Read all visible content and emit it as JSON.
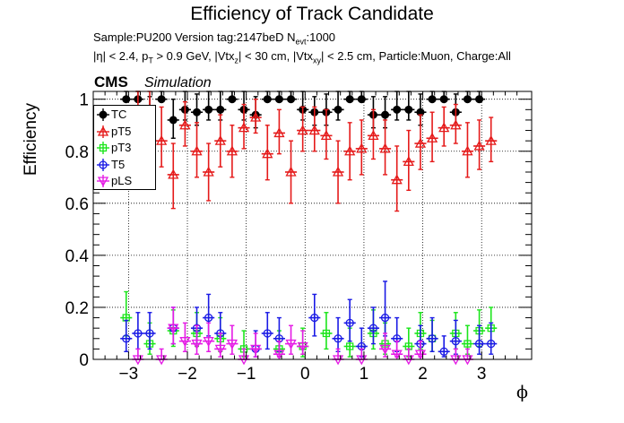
{
  "page": {
    "title": "Efficiency of Track Candidate",
    "sample_line_a": "Sample:PU200   Version tag:2147beD  N",
    "sample_line_sub": "evt",
    "sample_line_b": ":1000",
    "cuts": {
      "p1": "|η| < 2.4, p",
      "s1": "T",
      "p2": " > 0.9 GeV, |Vtx",
      "s2": "z",
      "p3": "| < 30 cm, |Vtx",
      "s3": "xy",
      "p4": "| < 2.5 cm, Particle:Muon, Charge:All"
    },
    "cms_label": "CMS",
    "sim_label": "Simulation"
  },
  "chart_data": {
    "type": "scatter",
    "title": "Efficiency of Track Candidate",
    "xlabel": "ϕ",
    "ylabel": "Efficiency",
    "xlim": [
      -3.6,
      3.85
    ],
    "ylim": [
      0,
      1.03
    ],
    "xticks": [
      -3,
      -2,
      -1,
      0,
      1,
      2,
      3
    ],
    "yticks": [
      0,
      0.2,
      0.4,
      0.6,
      0.8,
      1
    ],
    "ytick_labels": [
      "0",
      "0.2",
      "0.4",
      "0.6",
      "0.8",
      "1"
    ],
    "grid": true,
    "legend_position": "top-left",
    "bin_width": 0.2,
    "series": [
      {
        "name": "TC",
        "color": "#000000",
        "marker": "filled-circle",
        "points": [
          [
            -3.04,
            1.0,
            0.06,
            0.0
          ],
          [
            -2.84,
            1.0,
            0.06,
            0.0
          ],
          [
            -2.64,
            0.93,
            0.08,
            0.06
          ],
          [
            -2.44,
            1.0,
            0.07,
            0.0
          ],
          [
            -2.24,
            0.92,
            0.08,
            0.07
          ],
          [
            -2.04,
            0.96,
            0.07,
            0.04
          ],
          [
            -1.84,
            0.95,
            0.07,
            0.05
          ],
          [
            -1.64,
            0.96,
            0.07,
            0.04
          ],
          [
            -1.44,
            0.96,
            0.07,
            0.04
          ],
          [
            -1.24,
            1.0,
            0.06,
            0.0
          ],
          [
            -1.04,
            0.96,
            0.07,
            0.04
          ],
          [
            -0.84,
            0.94,
            0.07,
            0.05
          ],
          [
            -0.64,
            1.0,
            0.06,
            0.0
          ],
          [
            -0.44,
            1.0,
            0.06,
            0.0
          ],
          [
            -0.24,
            1.0,
            0.06,
            0.0
          ],
          [
            -0.04,
            0.96,
            0.07,
            0.04
          ],
          [
            0.16,
            0.95,
            0.06,
            0.05
          ],
          [
            0.36,
            0.95,
            0.07,
            0.05
          ],
          [
            0.56,
            0.96,
            0.07,
            0.04
          ],
          [
            0.76,
            1.0,
            0.06,
            0.0
          ],
          [
            0.96,
            1.0,
            0.06,
            0.0
          ],
          [
            1.16,
            0.94,
            0.07,
            0.05
          ],
          [
            1.36,
            0.94,
            0.07,
            0.05
          ],
          [
            1.56,
            0.96,
            0.07,
            0.04
          ],
          [
            1.76,
            0.96,
            0.07,
            0.04
          ],
          [
            1.96,
            0.95,
            0.07,
            0.05
          ],
          [
            2.16,
            1.0,
            0.06,
            0.0
          ],
          [
            2.36,
            1.0,
            0.06,
            0.0
          ],
          [
            2.56,
            0.95,
            0.07,
            0.05
          ],
          [
            2.76,
            1.0,
            0.06,
            0.0
          ],
          [
            2.96,
            1.0,
            0.06,
            0.0
          ]
        ]
      },
      {
        "name": "pT5",
        "color": "#e51a1a",
        "marker": "open-triangle",
        "points": [
          [
            -3.04,
            0.8,
            0.14,
            0.12
          ],
          [
            -2.84,
            0.94,
            0.1,
            0.06
          ],
          [
            -2.64,
            0.93,
            0.1,
            0.07
          ],
          [
            -2.44,
            0.84,
            0.13,
            0.1
          ],
          [
            -2.24,
            0.71,
            0.12,
            0.13
          ],
          [
            -2.04,
            0.9,
            0.09,
            0.08
          ],
          [
            -1.84,
            0.8,
            0.11,
            0.1
          ],
          [
            -1.64,
            0.72,
            0.11,
            0.11
          ],
          [
            -1.44,
            0.84,
            0.1,
            0.1
          ],
          [
            -1.24,
            0.8,
            0.1,
            0.1
          ],
          [
            -1.04,
            0.89,
            0.09,
            0.08
          ],
          [
            -0.84,
            0.93,
            0.07,
            0.06
          ],
          [
            -0.64,
            0.79,
            0.11,
            0.1
          ],
          [
            -0.44,
            0.87,
            0.09,
            0.08
          ],
          [
            -0.24,
            0.72,
            0.12,
            0.12
          ],
          [
            -0.04,
            0.88,
            0.09,
            0.08
          ],
          [
            0.16,
            0.88,
            0.09,
            0.08
          ],
          [
            0.36,
            0.86,
            0.1,
            0.09
          ],
          [
            0.56,
            0.72,
            0.12,
            0.12
          ],
          [
            0.76,
            0.8,
            0.11,
            0.11
          ],
          [
            0.96,
            0.81,
            0.11,
            0.1
          ],
          [
            1.16,
            0.86,
            0.1,
            0.09
          ],
          [
            1.36,
            0.81,
            0.11,
            0.1
          ],
          [
            1.56,
            0.69,
            0.13,
            0.12
          ],
          [
            1.76,
            0.76,
            0.12,
            0.11
          ],
          [
            1.96,
            0.83,
            0.11,
            0.1
          ],
          [
            2.16,
            0.85,
            0.1,
            0.09
          ],
          [
            2.36,
            0.89,
            0.08,
            0.07
          ],
          [
            2.56,
            0.9,
            0.08,
            0.07
          ],
          [
            2.76,
            0.8,
            0.11,
            0.1
          ],
          [
            2.96,
            0.82,
            0.1,
            0.09
          ],
          [
            3.16,
            0.84,
            0.09,
            0.08
          ]
        ]
      },
      {
        "name": "pT3",
        "color": "#1ae51a",
        "marker": "open-square",
        "points": [
          [
            -3.04,
            0.16,
            0.1,
            0.07
          ],
          [
            -2.64,
            0.06,
            0.08,
            0.04
          ],
          [
            -2.24,
            0.11,
            0.08,
            0.06
          ],
          [
            -1.84,
            0.1,
            0.08,
            0.05
          ],
          [
            -1.44,
            0.08,
            0.08,
            0.05
          ],
          [
            -1.04,
            0.04,
            0.07,
            0.03
          ],
          [
            -0.44,
            0.04,
            0.07,
            0.03
          ],
          [
            -0.04,
            0.05,
            0.07,
            0.04
          ],
          [
            0.36,
            0.1,
            0.08,
            0.06
          ],
          [
            0.76,
            0.05,
            0.07,
            0.04
          ],
          [
            1.16,
            0.1,
            0.09,
            0.06
          ],
          [
            1.36,
            0.06,
            0.08,
            0.04
          ],
          [
            1.76,
            0.05,
            0.07,
            0.04
          ],
          [
            1.96,
            0.1,
            0.08,
            0.06
          ],
          [
            2.16,
            0.08,
            0.07,
            0.05
          ],
          [
            2.56,
            0.1,
            0.08,
            0.06
          ],
          [
            2.76,
            0.06,
            0.07,
            0.04
          ],
          [
            2.96,
            0.11,
            0.08,
            0.06
          ],
          [
            3.16,
            0.12,
            0.08,
            0.06
          ]
        ]
      },
      {
        "name": "T5",
        "color": "#1a1ae5",
        "marker": "open-circle",
        "points": [
          [
            -3.04,
            0.08,
            0.07,
            0.05
          ],
          [
            -2.84,
            0.1,
            0.08,
            0.06
          ],
          [
            -2.64,
            0.1,
            0.08,
            0.06
          ],
          [
            -2.24,
            0.12,
            0.08,
            0.06
          ],
          [
            -1.84,
            0.12,
            0.08,
            0.06
          ],
          [
            -1.64,
            0.16,
            0.09,
            0.07
          ],
          [
            -1.44,
            0.1,
            0.08,
            0.06
          ],
          [
            -0.84,
            0.04,
            0.07,
            0.03
          ],
          [
            -0.64,
            0.1,
            0.08,
            0.06
          ],
          [
            -0.44,
            0.08,
            0.08,
            0.05
          ],
          [
            0.16,
            0.16,
            0.09,
            0.07
          ],
          [
            0.56,
            0.08,
            0.08,
            0.05
          ],
          [
            0.76,
            0.14,
            0.09,
            0.07
          ],
          [
            0.96,
            0.05,
            0.07,
            0.04
          ],
          [
            1.16,
            0.12,
            0.08,
            0.06
          ],
          [
            1.36,
            0.16,
            0.14,
            0.07
          ],
          [
            1.56,
            0.08,
            0.08,
            0.05
          ],
          [
            1.96,
            0.06,
            0.07,
            0.04
          ],
          [
            2.16,
            0.08,
            0.08,
            0.05
          ],
          [
            2.36,
            0.03,
            0.06,
            0.02
          ],
          [
            2.56,
            0.07,
            0.08,
            0.05
          ],
          [
            2.96,
            0.06,
            0.07,
            0.04
          ],
          [
            3.16,
            0.06,
            0.08,
            0.04
          ]
        ]
      },
      {
        "name": "pLS",
        "color": "#e51ae5",
        "marker": "open-triangle-down",
        "points": [
          [
            -2.84,
            0.0,
            0.04,
            0.0
          ],
          [
            -2.44,
            0.0,
            0.04,
            0.0
          ],
          [
            -2.24,
            0.12,
            0.08,
            0.06
          ],
          [
            -2.04,
            0.07,
            0.07,
            0.04
          ],
          [
            -1.84,
            0.06,
            0.07,
            0.04
          ],
          [
            -1.64,
            0.07,
            0.07,
            0.04
          ],
          [
            -1.44,
            0.04,
            0.06,
            0.03
          ],
          [
            -1.24,
            0.06,
            0.07,
            0.04
          ],
          [
            -1.04,
            0.0,
            0.04,
            0.0
          ],
          [
            -0.84,
            0.04,
            0.06,
            0.03
          ],
          [
            -0.44,
            0.02,
            0.05,
            0.01
          ],
          [
            -0.24,
            0.06,
            0.07,
            0.04
          ],
          [
            -0.04,
            0.05,
            0.06,
            0.03
          ],
          [
            0.56,
            0.0,
            0.04,
            0.0
          ],
          [
            0.96,
            0.0,
            0.04,
            0.0
          ],
          [
            1.36,
            0.04,
            0.06,
            0.03
          ],
          [
            1.56,
            0.02,
            0.05,
            0.01
          ],
          [
            1.76,
            0.0,
            0.04,
            0.0
          ],
          [
            1.96,
            0.02,
            0.05,
            0.01
          ],
          [
            2.56,
            0.0,
            0.04,
            0.0
          ],
          [
            2.76,
            0.0,
            0.04,
            0.0
          ]
        ]
      }
    ]
  }
}
